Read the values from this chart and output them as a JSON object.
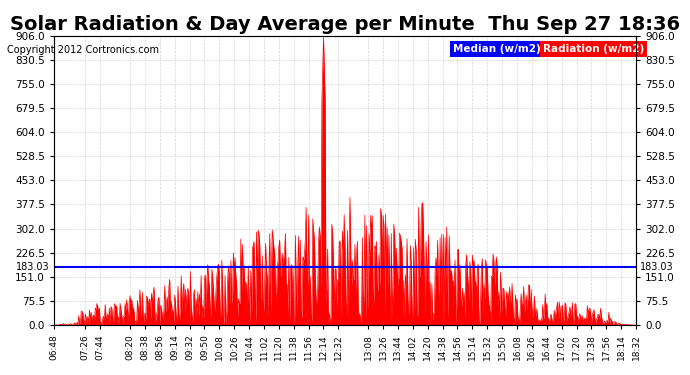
{
  "title": "Solar Radiation & Day Average per Minute  Thu Sep 27 18:36",
  "copyright": "Copyright 2012 Cortronics.com",
  "ymin": 0.0,
  "ymax": 906.0,
  "yticks": [
    0.0,
    75.5,
    151.0,
    226.5,
    302.0,
    377.5,
    453.0,
    528.5,
    604.0,
    679.5,
    755.0,
    830.5,
    906.0
  ],
  "median_value": 183.03,
  "median_label": "183.03",
  "median_color": "#0000ff",
  "radiation_color": "#ff0000",
  "background_color": "#ffffff",
  "plot_bg_color": "#ffffff",
  "grid_color": "#cccccc",
  "title_fontsize": 14,
  "legend_median_bg": "#0000ff",
  "legend_radiation_bg": "#ff0000",
  "xtick_labels": [
    "06:48",
    "07:26",
    "07:44",
    "08:20",
    "08:38",
    "08:56",
    "09:14",
    "09:32",
    "09:50",
    "10:08",
    "10:26",
    "10:44",
    "11:02",
    "11:20",
    "11:38",
    "11:56",
    "12:14",
    "12:32",
    "13:08",
    "13:26",
    "13:44",
    "14:02",
    "14:20",
    "14:38",
    "14:56",
    "15:14",
    "15:32",
    "15:50",
    "16:08",
    "16:26",
    "16:44",
    "17:02",
    "17:20",
    "17:38",
    "17:56",
    "18:14",
    "18:32"
  ]
}
